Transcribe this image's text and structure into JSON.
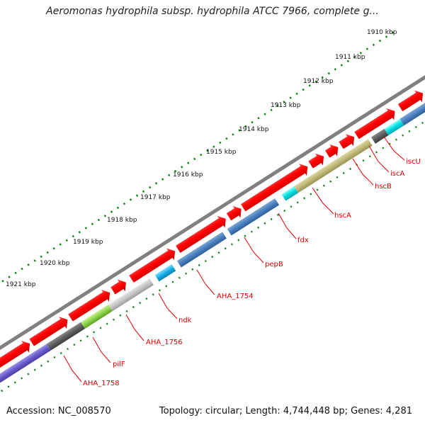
{
  "title": "Aeromonas hydrophila subsp. hydrophila ATCC 7966, complete g...",
  "footer": {
    "accession": "Accession: NC_008570",
    "summary": "Topology: circular; Length: 4,744,448 bp; Genes: 4,281"
  },
  "ticks": [
    "1910 kbp",
    "1911 kbp",
    "1912 kbp",
    "1913 kbp",
    "1914 kbp",
    "1915 kbp",
    "1916 kbp",
    "1917 kbp",
    "1918 kbp",
    "1919 kbp",
    "1920 kbp",
    "1921 kbp"
  ],
  "colors": {
    "forward_cds": "#ff0000",
    "backbone": "#808080",
    "tick": "#008000",
    "label": "#dd0000"
  },
  "genes": [
    {
      "name": "iscU"
    },
    {
      "name": "iscA"
    },
    {
      "name": "hscB"
    },
    {
      "name": "hscA"
    },
    {
      "name": "fdx"
    },
    {
      "name": "pepB"
    },
    {
      "name": "AHA_1754"
    },
    {
      "name": "ndk"
    },
    {
      "name": "AHA_1756"
    },
    {
      "name": "pilF"
    },
    {
      "name": "AHA_1758"
    }
  ]
}
